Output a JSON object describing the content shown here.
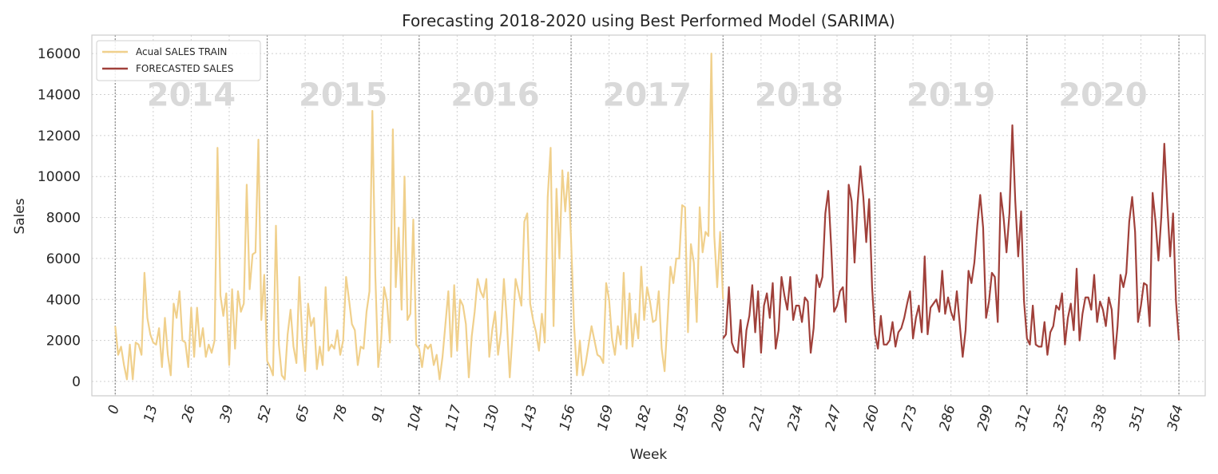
{
  "chart_data": {
    "type": "line",
    "title": "Forecasting 2018-2020 using Best Performed Model (SARIMA)",
    "xlabel": "Week",
    "ylabel": "Sales",
    "xlim": [
      -8,
      373
    ],
    "ylim": [
      -700,
      16900
    ],
    "x_ticks": [
      0,
      13,
      26,
      39,
      52,
      65,
      78,
      91,
      104,
      117,
      130,
      143,
      156,
      169,
      182,
      195,
      208,
      221,
      234,
      247,
      260,
      273,
      286,
      299,
      312,
      325,
      338,
      351,
      364
    ],
    "y_ticks": [
      0,
      2000,
      4000,
      6000,
      8000,
      10000,
      12000,
      14000,
      16000
    ],
    "grid": true,
    "legend_position": "top-left",
    "year_dividers": [
      0,
      52,
      104,
      156,
      208,
      260,
      312,
      364
    ],
    "year_labels": [
      {
        "text": "2014",
        "x": 26,
        "y": 14000
      },
      {
        "text": "2015",
        "x": 78,
        "y": 14000
      },
      {
        "text": "2016",
        "x": 130,
        "y": 14000
      },
      {
        "text": "2017",
        "x": 182,
        "y": 14000
      },
      {
        "text": "2018",
        "x": 234,
        "y": 14000
      },
      {
        "text": "2019",
        "x": 286,
        "y": 14000
      },
      {
        "text": "2020",
        "x": 338,
        "y": 14000
      }
    ],
    "series": [
      {
        "name": "Acual SALES TRAIN",
        "color": "#f0d08c",
        "x_start": 0,
        "values": [
          2700,
          1300,
          1700,
          800,
          100,
          1800,
          100,
          1900,
          1800,
          1300,
          5300,
          3100,
          2300,
          1900,
          1800,
          2600,
          700,
          3100,
          1300,
          300,
          3800,
          3100,
          4400,
          2000,
          1900,
          700,
          3600,
          1200,
          3600,
          1700,
          2600,
          1200,
          1800,
          1400,
          2000,
          11400,
          4200,
          3200,
          4300,
          800,
          4500,
          1600,
          4400,
          3400,
          3800,
          9600,
          4500,
          6200,
          6300,
          11800,
          3000,
          5200,
          1000,
          700,
          300,
          7600,
          1800,
          300,
          100,
          2300,
          3500,
          1700,
          900,
          5100,
          2100,
          500,
          3800,
          2700,
          3100,
          600,
          1700,
          800,
          4600,
          1500,
          1800,
          1600,
          2500,
          1300,
          2000,
          5100,
          4000,
          2800,
          2500,
          800,
          1700,
          1600,
          3400,
          4400,
          13200,
          5200,
          700,
          2000,
          4600,
          3900,
          1900,
          12300,
          4600,
          7500,
          3500,
          10000,
          3000,
          3300,
          7900,
          1800,
          1600,
          700,
          1800,
          1600,
          1800,
          800,
          1300,
          100,
          1200,
          2800,
          4400,
          1200,
          4700,
          1500,
          4000,
          3700,
          2800,
          200,
          2200,
          3400,
          5000,
          4400,
          4100,
          5000,
          1200,
          2500,
          3400,
          1300,
          2400,
          5000,
          3000,
          200,
          2400,
          5000,
          4400,
          3700,
          7800,
          8200,
          3800,
          3000,
          2400,
          1500,
          3300,
          1900,
          9000,
          11400,
          2700,
          9400,
          6000,
          10300,
          8300,
          10200,
          6900,
          2800,
          300,
          2000,
          300,
          900,
          1800,
          2700,
          2000,
          1300,
          1200,
          900,
          4800,
          4000,
          2100,
          1300,
          2700,
          1800,
          5300,
          1600,
          4300,
          1700,
          3300,
          2100,
          5600,
          3000,
          4600,
          3900,
          2900,
          3000,
          4400,
          1600,
          500,
          3000,
          5600,
          4800,
          6000,
          6000,
          8600,
          8500,
          2400,
          6700,
          5800,
          2900,
          8500,
          6300,
          7300,
          7100,
          16000,
          7100,
          4600,
          7300,
          4000
        ]
      },
      {
        "name": "FORECASTED SALES",
        "color": "#a0403a",
        "x_start": 208,
        "values": [
          2100,
          2300,
          4600,
          1900,
          1500,
          1400,
          3000,
          700,
          2500,
          3200,
          4700,
          2400,
          4400,
          1400,
          3700,
          4300,
          3100,
          4800,
          1600,
          2500,
          5100,
          4200,
          3500,
          5100,
          3000,
          3700,
          3700,
          2900,
          4100,
          3900,
          1400,
          2600,
          5200,
          4600,
          5100,
          8200,
          9300,
          6600,
          3400,
          3700,
          4400,
          4600,
          2900,
          9600,
          8800,
          5800,
          8600,
          10500,
          9000,
          6800,
          8900,
          4600,
          2300,
          1600,
          3200,
          1800,
          1800,
          2000,
          2900,
          1700,
          2400,
          2600,
          3100,
          3800,
          4400,
          2100,
          3100,
          3700,
          2400,
          6100,
          2300,
          3600,
          3800,
          4000,
          3400,
          5400,
          3300,
          4100,
          3400,
          3000,
          4400,
          2800,
          1200,
          2500,
          5400,
          4800,
          5800,
          7600,
          9100,
          7500,
          3100,
          3900,
          5300,
          5100,
          2900,
          9200,
          8000,
          6300,
          8200,
          12500,
          8800,
          6100,
          8300,
          3900,
          2100,
          1800,
          3700,
          1800,
          1700,
          1700,
          2900,
          1300,
          2400,
          2700,
          3700,
          3500,
          4300,
          1800,
          3100,
          3800,
          2500,
          5500,
          2000,
          3300,
          4100,
          4100,
          3500,
          5200,
          2900,
          3900,
          3500,
          2700,
          4100,
          3500,
          1100,
          2700,
          5200,
          4600,
          5300,
          7800,
          9000,
          7300,
          2900,
          3700,
          4800,
          4700,
          2700,
          9200,
          7800,
          5900,
          8100,
          11600,
          8700,
          6100,
          8200,
          3900,
          2000
        ]
      }
    ]
  }
}
